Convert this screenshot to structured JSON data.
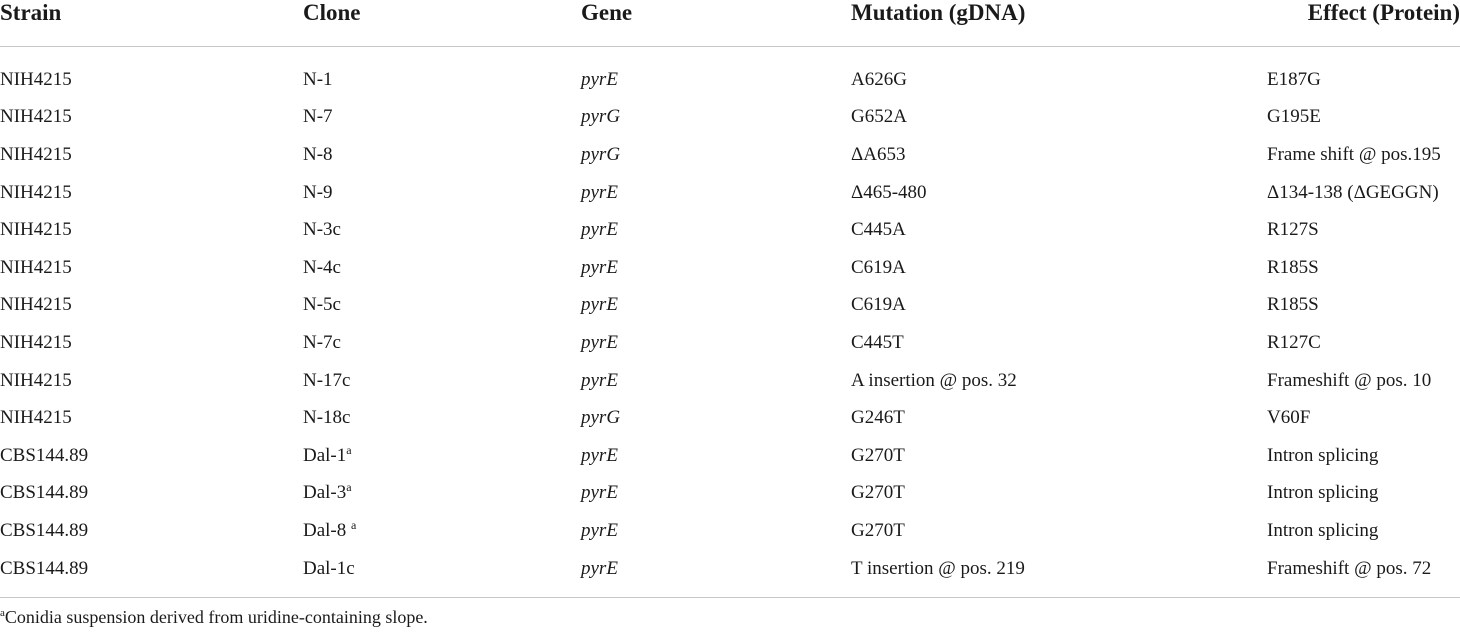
{
  "table": {
    "headers": {
      "strain": "Strain",
      "clone": "Clone",
      "gene": "Gene",
      "mutation": "Mutation (gDNA)",
      "effect": "Effect (Protein)"
    },
    "rows": [
      {
        "strain": "NIH4215",
        "clone": "N-1",
        "clone_sup": "",
        "gene": "pyrE",
        "mutation": "A626G",
        "effect": "E187G"
      },
      {
        "strain": "NIH4215",
        "clone": "N-7",
        "clone_sup": "",
        "gene": "pyrG",
        "mutation": "G652A",
        "effect": "G195E"
      },
      {
        "strain": "NIH4215",
        "clone": "N-8",
        "clone_sup": "",
        "gene": "pyrG",
        "mutation": "ΔA653",
        "effect": "Frame shift @ pos.195"
      },
      {
        "strain": "NIH4215",
        "clone": "N-9",
        "clone_sup": "",
        "gene": "pyrE",
        "mutation": "Δ465-480",
        "effect": "Δ134-138 (ΔGEGGN)"
      },
      {
        "strain": "NIH4215",
        "clone": "N-3c",
        "clone_sup": "",
        "gene": "pyrE",
        "mutation": "C445A",
        "effect": "R127S"
      },
      {
        "strain": "NIH4215",
        "clone": "N-4c",
        "clone_sup": "",
        "gene": "pyrE",
        "mutation": "C619A",
        "effect": "R185S"
      },
      {
        "strain": "NIH4215",
        "clone": "N-5c",
        "clone_sup": "",
        "gene": "pyrE",
        "mutation": "C619A",
        "effect": "R185S"
      },
      {
        "strain": "NIH4215",
        "clone": "N-7c",
        "clone_sup": "",
        "gene": "pyrE",
        "mutation": "C445T",
        "effect": "R127C"
      },
      {
        "strain": "NIH4215",
        "clone": "N-17c",
        "clone_sup": "",
        "gene": "pyrE",
        "mutation": "A insertion @ pos. 32",
        "effect": "Frameshift @ pos. 10"
      },
      {
        "strain": "NIH4215",
        "clone": "N-18c",
        "clone_sup": "",
        "gene": "pyrG",
        "mutation": "G246T",
        "effect": "V60F"
      },
      {
        "strain": "CBS144.89",
        "clone": "Dal-1",
        "clone_sup": "a",
        "gene": "pyrE",
        "mutation": "G270T",
        "effect": "Intron splicing"
      },
      {
        "strain": "CBS144.89",
        "clone": "Dal-3",
        "clone_sup": "a",
        "gene": "pyrE",
        "mutation": "G270T",
        "effect": "Intron splicing"
      },
      {
        "strain": "CBS144.89",
        "clone": "Dal-8 ",
        "clone_sup": "a",
        "gene": "pyrE",
        "mutation": "G270T",
        "effect": "Intron splicing"
      },
      {
        "strain": "CBS144.89",
        "clone": "Dal-1c",
        "clone_sup": "",
        "gene": "pyrE",
        "mutation": "T insertion @ pos. 219",
        "effect": "Frameshift @ pos. 72"
      }
    ]
  },
  "footnote": {
    "marker": "a",
    "text": "Conidia suspension derived from uridine-containing slope."
  }
}
